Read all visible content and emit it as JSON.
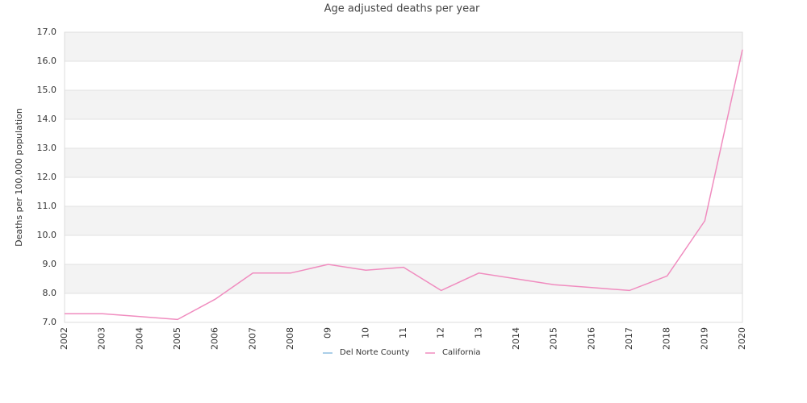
{
  "chart_data": {
    "type": "line",
    "title": "Age adjusted deaths per year",
    "y_label": "Deaths per 100,000 population",
    "categories": [
      "2002",
      "2003",
      "2004",
      "2005",
      "2006",
      "2007",
      "2008",
      "09",
      "10",
      "11",
      "12",
      "13",
      "2014",
      "2015",
      "2016",
      "2017",
      "2018",
      "2019",
      "2020"
    ],
    "series": [
      {
        "name": "Del Norte County",
        "color": "#8fbfe0",
        "values": [
          null,
          null,
          null,
          null,
          null,
          null,
          null,
          null,
          null,
          null,
          null,
          null,
          null,
          null,
          null,
          null,
          null,
          null,
          null
        ]
      },
      {
        "name": "California",
        "color": "#f08cbf",
        "values": [
          7.3,
          7.3,
          7.2,
          7.1,
          7.8,
          8.7,
          8.7,
          9.0,
          8.8,
          8.9,
          8.1,
          8.7,
          8.5,
          8.3,
          8.2,
          8.1,
          8.6,
          10.5,
          16.4
        ]
      }
    ],
    "ylim": [
      7,
      17
    ],
    "yticks": [
      {
        "value": 7,
        "label": "7.0"
      },
      {
        "value": 8,
        "label": "8.0"
      },
      {
        "value": 9,
        "label": "9.0"
      },
      {
        "value": 10,
        "label": "10.0"
      },
      {
        "value": 11,
        "label": "11.0"
      },
      {
        "value": 12,
        "label": "12.0"
      },
      {
        "value": 13,
        "label": "13.0"
      },
      {
        "value": 14,
        "label": "14.0"
      },
      {
        "value": 15,
        "label": "15.0"
      },
      {
        "value": 16,
        "label": "16.0"
      },
      {
        "value": 17,
        "label": "17.0"
      }
    ],
    "grid": true,
    "legend": "bottom"
  }
}
